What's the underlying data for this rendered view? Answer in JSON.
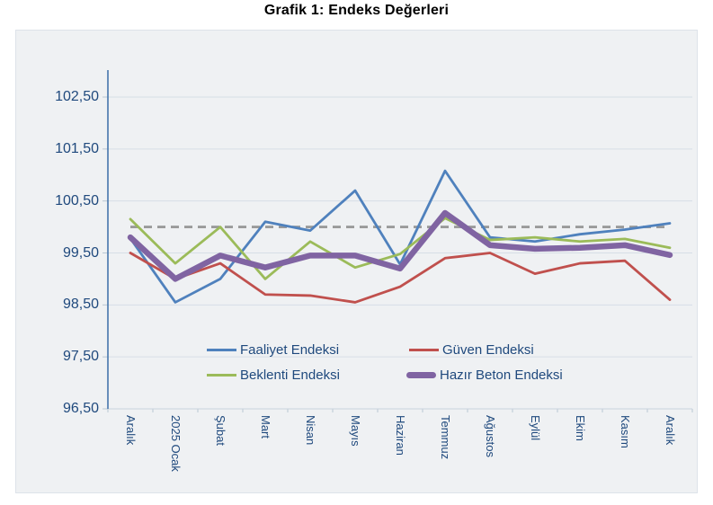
{
  "page": {
    "title": "Grafik 1: Endeks Değerleri"
  },
  "chart_data": {
    "type": "line",
    "title": "Grafik 1: Endeks Değerleri",
    "categories": [
      "Aralık",
      "2025 Ocak",
      "Şubat",
      "Mart",
      "Nisan",
      "Mayıs",
      "Haziran",
      "Temmuz",
      "Ağustos",
      "Eylül",
      "Ekim",
      "Kasım",
      "Aralık"
    ],
    "series": [
      {
        "name": "Faaliyet Endeksi",
        "color": "#4F81BD",
        "width": 2.8,
        "values": [
          99.78,
          98.55,
          99.0,
          100.1,
          99.93,
          100.7,
          99.28,
          101.08,
          99.8,
          99.72,
          99.86,
          99.95,
          100.07
        ]
      },
      {
        "name": "Güven Endeksi",
        "color": "#C0504D",
        "width": 2.8,
        "values": [
          99.5,
          99.0,
          99.3,
          98.7,
          98.68,
          98.55,
          98.85,
          99.4,
          99.5,
          99.1,
          99.3,
          99.35,
          98.6
        ]
      },
      {
        "name": "Beklenti Endeksi",
        "color": "#9BBB59",
        "width": 2.8,
        "values": [
          100.15,
          99.3,
          100.0,
          99.0,
          99.72,
          99.22,
          99.48,
          100.17,
          99.75,
          99.8,
          99.72,
          99.77,
          99.6
        ]
      },
      {
        "name": "Hazır Beton Endeksi",
        "color": "#8064A2",
        "width": 6.5,
        "values": [
          99.8,
          99.0,
          99.45,
          99.22,
          99.45,
          99.45,
          99.2,
          100.27,
          99.65,
          99.58,
          99.6,
          99.65,
          99.46
        ]
      }
    ],
    "reference_line": {
      "value": 100.0,
      "style": "dashed",
      "color": "#9A9A9A"
    },
    "y_axis": {
      "min": 96.5,
      "max": 103.0,
      "tick_step": 1.0,
      "tick_values": [
        96.5,
        97.5,
        98.5,
        99.5,
        100.5,
        101.5,
        102.5
      ],
      "tick_labels": [
        "96,50",
        "97,50",
        "98,50",
        "99,50",
        "100,50",
        "101,50",
        "102,50"
      ],
      "value_format": "decimal-comma"
    },
    "x_axis": {
      "labels_rotation_degrees": 90
    },
    "grid": true,
    "legend": {
      "position": "inside-bottom",
      "rows": [
        [
          "Faaliyet Endeksi",
          "Güven Endeksi"
        ],
        [
          "Beklenti Endeksi",
          "Hazır Beton Endeksi"
        ]
      ]
    }
  },
  "colors": {
    "axis_text": "#1F497D",
    "y_axis_line": "#4676AC",
    "x_axis_line": "#C9D3DE",
    "tick": "#B9C6D3",
    "gridline": "#D6DEE6",
    "plot_background": "#EFF1F3",
    "frame_border": "#DDE3E9",
    "title_text": "#000000"
  }
}
